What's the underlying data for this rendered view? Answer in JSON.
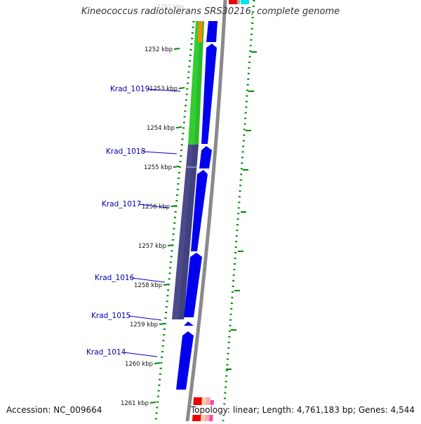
{
  "title": "Kineococcus radiotolerans SRS30216, complete genome",
  "accession": "Accession: NC_009664",
  "summary": "Topology: linear; Length: 4,761,183 bp; Genes: 4,544",
  "ruler": {
    "top_partial_label": "1251 kbp",
    "labels": [
      "1252 kbp",
      "1253 kbp",
      "1254 kbp",
      "1255 kbp",
      "1256 kbp",
      "1257 kbp",
      "1258 kbp",
      "1259 kbp",
      "1260 kbp",
      "1261 kbp"
    ]
  },
  "genes": [
    {
      "id": "Krad_1019",
      "label": "Krad_1019"
    },
    {
      "id": "Krad_1018",
      "label": "Krad_1018"
    },
    {
      "id": "Krad_1017",
      "label": "Krad_1017"
    },
    {
      "id": "Krad_1016",
      "label": "Krad_1016"
    },
    {
      "id": "Krad_1015",
      "label": "Krad_1015"
    },
    {
      "id": "Krad_1014",
      "label": "Krad_1014"
    }
  ],
  "colors": {
    "gene_arrow": "#0000ee",
    "label_text": "#0000aa",
    "green_band": "#33cc33",
    "purple_band": "#4b4b8c",
    "tick_green": "#008800",
    "backbone": "#888888"
  }
}
